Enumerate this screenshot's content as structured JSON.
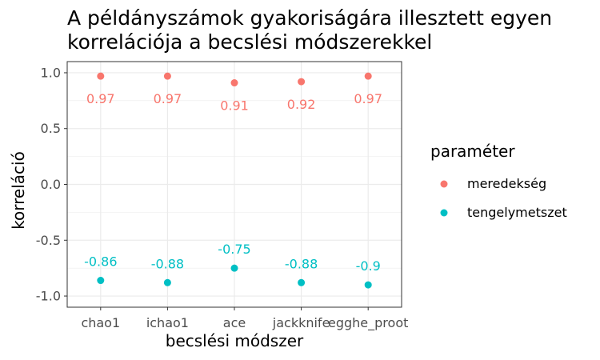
{
  "chart_data": {
    "type": "scatter",
    "title_lines": [
      "A példányszámok gyakoriságára illesztett egyen",
      "korrelációja a becslési módszerekkel"
    ],
    "xlabel": "becslési módszer",
    "ylabel": "korreláció",
    "categories": [
      "chao1",
      "ichao1",
      "ace",
      "jackknife",
      "egghe_proot"
    ],
    "ylim": [
      -1.1,
      1.1
    ],
    "yticks": [
      1.0,
      0.5,
      0.0,
      -0.5,
      -1.0
    ],
    "ytick_labels": [
      "1.0",
      "0.5",
      "0.0",
      "-0.5",
      "-1.0"
    ],
    "grid": true,
    "legend": {
      "title": "paraméter",
      "placement": "right",
      "entries": [
        "meredekség",
        "tengelymetszet"
      ]
    },
    "series": [
      {
        "name": "meredekség",
        "color": "#F8766D",
        "values": [
          0.97,
          0.97,
          0.91,
          0.92,
          0.97
        ],
        "labels": [
          "0.97",
          "0.97",
          "0.91",
          "0.92",
          "0.97"
        ]
      },
      {
        "name": "tengelymetszet",
        "color": "#00BFC4",
        "values": [
          -0.86,
          -0.88,
          -0.75,
          -0.88,
          -0.9
        ],
        "labels": [
          "-0.86",
          "-0.88",
          "-0.75",
          "-0.88",
          "-0.9"
        ]
      }
    ]
  }
}
